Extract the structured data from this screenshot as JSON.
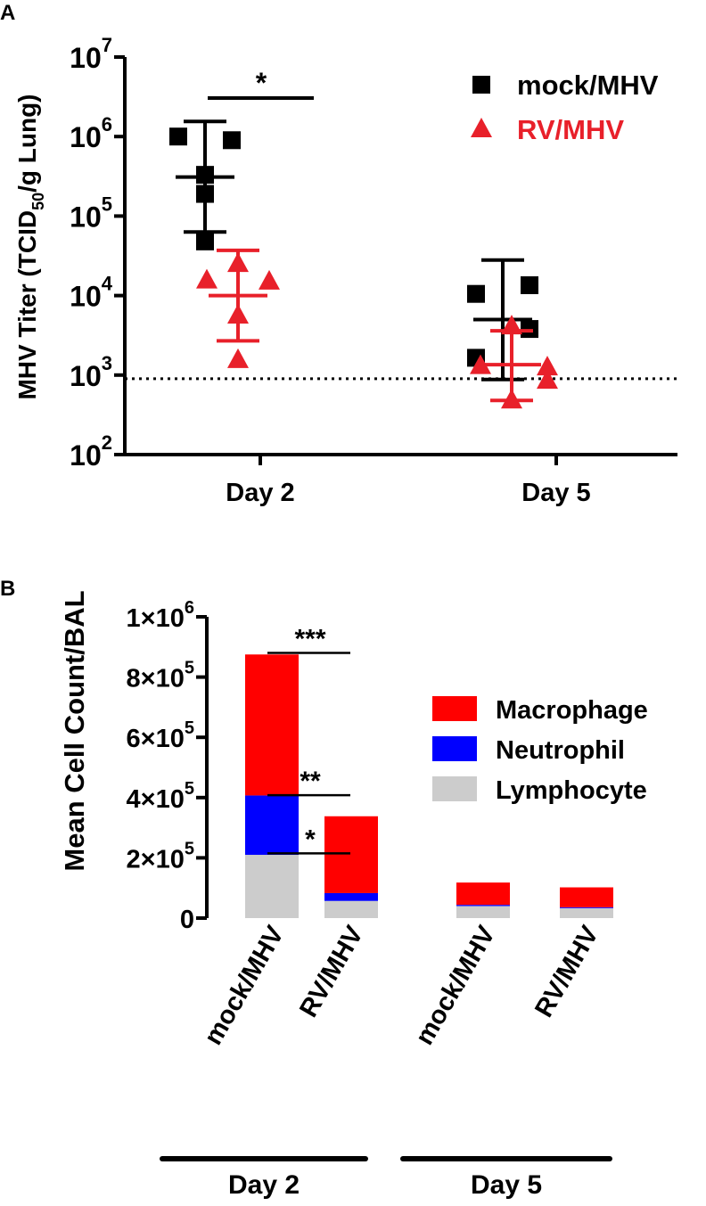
{
  "chart_data": [
    {
      "panel": "A",
      "type": "scatter",
      "title": "",
      "ylabel_main": "MHV Titer (TCID",
      "ylabel_sub": "50",
      "ylabel_tail": "/g Lung)",
      "yscale": "log",
      "ylim": [
        100,
        10000000
      ],
      "yticks": [
        {
          "base": "10",
          "exp": "2",
          "value": 100
        },
        {
          "base": "10",
          "exp": "3",
          "value": 1000
        },
        {
          "base": "10",
          "exp": "4",
          "value": 10000
        },
        {
          "base": "10",
          "exp": "5",
          "value": 100000
        },
        {
          "base": "10",
          "exp": "6",
          "value": 1000000
        },
        {
          "base": "10",
          "exp": "7",
          "value": 10000000
        }
      ],
      "categories": [
        "Day 2",
        "Day 5"
      ],
      "detection_limit": 900,
      "series": [
        {
          "name": "mock/MHV",
          "color": "#000000",
          "marker": "square",
          "groups": [
            {
              "category": "Day 2",
              "points": [
                1000000,
                900000,
                330000,
                190000,
                48000
              ],
              "mean": 310000,
              "err_low": 63000,
              "err_high": 1550000
            },
            {
              "category": "Day 5",
              "points": [
                10500,
                13500,
                3800,
                1650
              ],
              "mean": 5000,
              "err_low": 880,
              "err_high": 28000
            }
          ]
        },
        {
          "name": "RV/MHV",
          "color": "#e8202a",
          "marker": "triangle",
          "groups": [
            {
              "category": "Day 2",
              "points": [
                25000,
                15500,
                15000,
                5600,
                1550
              ],
              "mean": 10000,
              "err_low": 2700,
              "err_high": 37000
            },
            {
              "category": "Day 5",
              "points": [
                4100,
                1300,
                1250,
                850,
                480
              ],
              "mean": 1350,
              "err_low": 480,
              "err_high": 3600
            }
          ]
        }
      ],
      "annotation": "*"
    },
    {
      "panel": "B",
      "type": "bar",
      "stacked": true,
      "ylabel": "Mean Cell Count/BAL",
      "ylim": [
        0,
        1000000
      ],
      "yticks": [
        {
          "label": "0",
          "base": "",
          "exp": "",
          "value": 0
        },
        {
          "label": "",
          "base": "2×10",
          "exp": "5",
          "value": 200000
        },
        {
          "label": "",
          "base": "4×10",
          "exp": "5",
          "value": 400000
        },
        {
          "label": "",
          "base": "6×10",
          "exp": "5",
          "value": 600000
        },
        {
          "label": "",
          "base": "8×10",
          "exp": "5",
          "value": 800000
        },
        {
          "label": "",
          "base": "1×10",
          "exp": "6",
          "value": 1000000
        }
      ],
      "categories": [
        "mock/MHV",
        "RV/MHV",
        "mock/MHV",
        "RV/MHV"
      ],
      "groups": [
        "Day 2",
        "Day 5"
      ],
      "series": [
        {
          "name": "Lymphocyte",
          "color": "#cccccc",
          "values": [
            210000,
            57000,
            40000,
            33000
          ]
        },
        {
          "name": "Neutrophil",
          "color": "#0000ff",
          "values": [
            197000,
            26000,
            4000,
            3000
          ]
        },
        {
          "name": "Macrophage",
          "color": "#ff0000",
          "values": [
            468000,
            255000,
            74000,
            66000
          ]
        }
      ],
      "legend": [
        "Macrophage",
        "Neutrophil",
        "Lymphocyte"
      ],
      "significance": [
        {
          "label": "***",
          "level": 880000
        },
        {
          "label": "**",
          "level": 408000
        },
        {
          "label": "*",
          "level": 215000
        }
      ]
    }
  ]
}
